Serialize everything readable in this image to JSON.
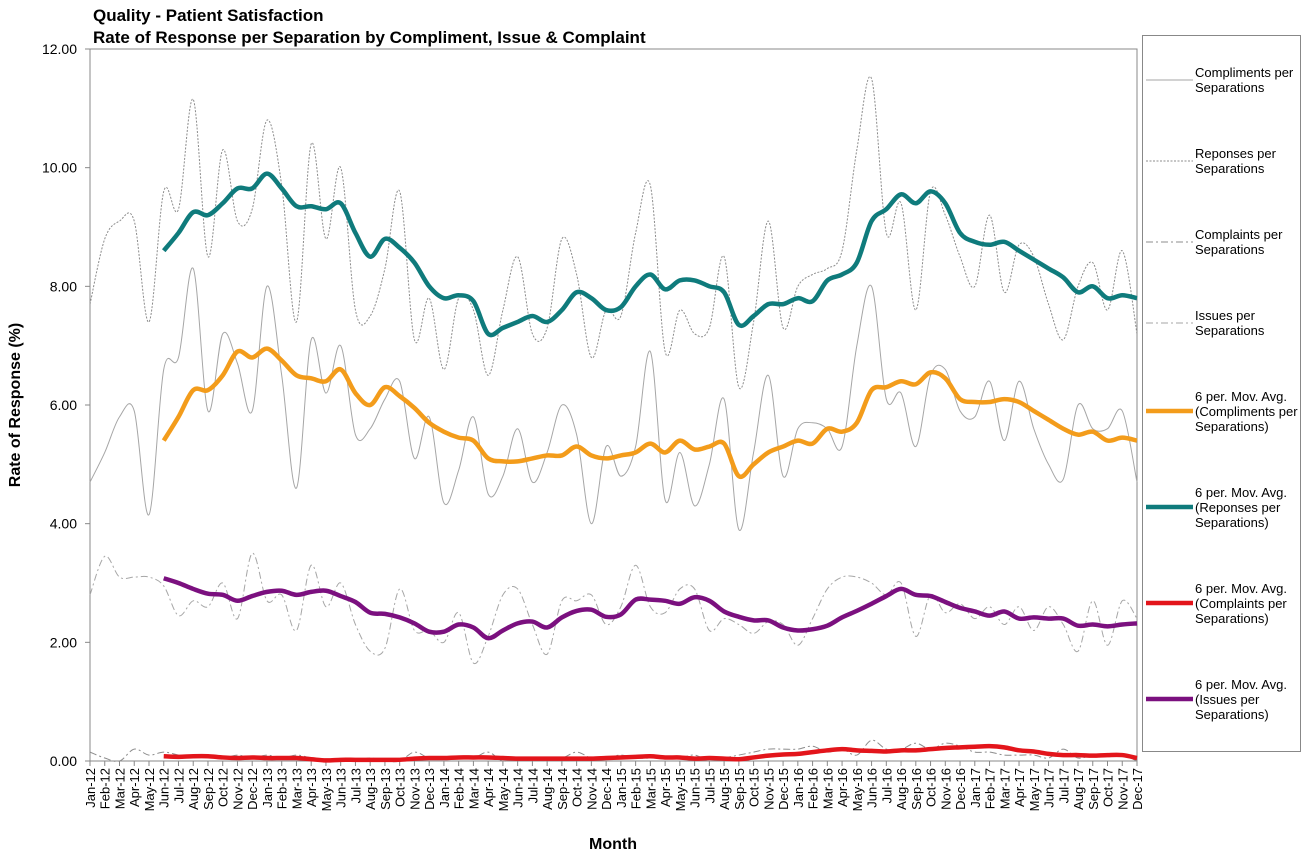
{
  "chart_data": {
    "type": "line",
    "title": "Quality - Patient Satisfaction",
    "subtitle": "Rate of Response per Separation by Compliment, Issue & Complaint",
    "x_label": "Month",
    "y_label": "Rate of  Response (%)",
    "categories": [
      "Jan-12",
      "Feb-12",
      "Mar-12",
      "Apr-12",
      "May-12",
      "Jun-12",
      "Jul-12",
      "Aug-12",
      "Sep-12",
      "Oct-12",
      "Nov-12",
      "Dec-12",
      "Jan-13",
      "Feb-13",
      "Mar-13",
      "Apr-13",
      "May-13",
      "Jun-13",
      "Jul-13",
      "Aug-13",
      "Sep-13",
      "Oct-13",
      "Nov-13",
      "Dec-13",
      "Jan-14",
      "Feb-14",
      "Mar-14",
      "Apr-14",
      "May-14",
      "Jun-14",
      "Jul-14",
      "Aug-14",
      "Sep-14",
      "Oct-14",
      "Nov-14",
      "Dec-14",
      "Jan-15",
      "Feb-15",
      "Mar-15",
      "Apr-15",
      "May-15",
      "Jun-15",
      "Jul-15",
      "Aug-15",
      "Sep-15",
      "Oct-15",
      "Nov-15",
      "Dec-15",
      "Jan-16",
      "Feb-16",
      "Mar-16",
      "Apr-16",
      "May-16",
      "Jun-16",
      "Jul-16",
      "Aug-16",
      "Sep-16",
      "Oct-16",
      "Nov-16",
      "Dec-16",
      "Jan-17",
      "Feb-17",
      "Mar-17",
      "Apr-17",
      "May-17",
      "Jun-17",
      "Jul-17",
      "Aug-17",
      "Sep-17",
      "Oct-17",
      "Nov-17",
      "Dec-17"
    ],
    "ylim": [
      0,
      12
    ],
    "yticks": [
      {
        "value": 0,
        "label": "0.00"
      },
      {
        "value": 2,
        "label": "2.00"
      },
      {
        "value": 4,
        "label": "4.00"
      },
      {
        "value": 6,
        "label": "6.00"
      },
      {
        "value": 8,
        "label": "8.00"
      },
      {
        "value": 10,
        "label": "10.00"
      },
      {
        "value": 12,
        "label": "12.00"
      }
    ],
    "legend": "right",
    "series": [
      {
        "name": "Compliments per Separations",
        "color": "#a6a6a6",
        "line_style": "solid",
        "values": [
          4.7,
          5.2,
          5.8,
          5.9,
          4.15,
          6.6,
          6.8,
          8.3,
          5.9,
          7.2,
          6.7,
          5.9,
          8.0,
          6.5,
          4.6,
          7.1,
          6.2,
          7.0,
          5.5,
          5.6,
          6.1,
          6.4,
          5.1,
          5.8,
          4.35,
          4.9,
          5.8,
          4.5,
          4.8,
          5.6,
          4.7,
          5.2,
          6.0,
          5.5,
          4.0,
          5.3,
          4.8,
          5.3,
          6.9,
          4.4,
          5.2,
          4.3,
          5.0,
          6.1,
          3.9,
          5.2,
          6.5,
          4.8,
          5.6,
          5.7,
          5.6,
          5.3,
          7.0,
          8.0,
          6.1,
          6.2,
          5.3,
          6.5,
          6.6,
          5.9,
          5.8,
          6.4,
          5.4,
          6.4,
          5.6,
          5.0,
          4.75,
          6.0,
          5.6,
          5.6,
          5.9,
          4.7
        ]
      },
      {
        "name": "Reponses per Separations",
        "color": "#8c8c8c",
        "line_style": "dotted",
        "values": [
          7.7,
          8.8,
          9.1,
          9.1,
          7.4,
          9.6,
          9.3,
          11.15,
          8.5,
          10.3,
          9.1,
          9.3,
          10.8,
          9.7,
          7.4,
          10.4,
          8.8,
          10.0,
          7.6,
          7.5,
          8.3,
          9.6,
          7.1,
          7.8,
          6.6,
          7.8,
          7.6,
          6.5,
          7.6,
          8.5,
          7.2,
          7.3,
          8.8,
          8.2,
          6.8,
          7.6,
          7.5,
          8.9,
          9.7,
          6.9,
          7.6,
          7.2,
          7.3,
          8.5,
          6.3,
          7.4,
          9.1,
          7.3,
          8.0,
          8.2,
          8.3,
          8.6,
          10.3,
          11.5,
          8.9,
          9.4,
          7.6,
          9.6,
          9.2,
          8.5,
          8.0,
          9.2,
          7.9,
          8.7,
          8.5,
          7.7,
          7.1,
          8.0,
          8.4,
          7.6,
          8.6,
          7.2
        ]
      },
      {
        "name": "Complaints per Separations",
        "color": "#8c8c8c",
        "line_style": "dash-dot",
        "values": [
          0.15,
          0.05,
          0.0,
          0.2,
          0.1,
          0.15,
          0.1,
          0.05,
          0.1,
          0.05,
          0.1,
          0.05,
          0.1,
          0.05,
          0.1,
          0.05,
          0.0,
          0.0,
          0.0,
          0.05,
          0.0,
          0.0,
          0.15,
          0.05,
          0.05,
          0.05,
          0.05,
          0.15,
          0.0,
          0.05,
          0.05,
          0.05,
          0.05,
          0.15,
          0.05,
          0.05,
          0.1,
          0.05,
          0.05,
          0.05,
          0.05,
          0.1,
          0.0,
          0.05,
          0.1,
          0.15,
          0.2,
          0.2,
          0.2,
          0.25,
          0.15,
          0.2,
          0.1,
          0.35,
          0.2,
          0.2,
          0.3,
          0.2,
          0.3,
          0.25,
          0.15,
          0.15,
          0.1,
          0.1,
          0.1,
          0.05,
          0.2,
          0.05,
          0.1,
          0.1,
          0.1,
          0.0
        ]
      },
      {
        "name": "Issues per Separations",
        "color": "#a6a6a6",
        "line_style": "dash-dot",
        "values": [
          2.8,
          3.45,
          3.1,
          3.1,
          3.1,
          2.95,
          2.45,
          2.7,
          2.6,
          3.0,
          2.4,
          3.5,
          2.7,
          2.8,
          2.2,
          3.3,
          2.6,
          3.0,
          2.3,
          1.85,
          1.9,
          2.9,
          2.2,
          2.2,
          2.0,
          2.5,
          1.65,
          2.1,
          2.8,
          2.9,
          2.3,
          1.8,
          2.7,
          2.7,
          2.8,
          2.3,
          2.6,
          3.3,
          2.6,
          2.5,
          2.9,
          2.9,
          2.2,
          2.4,
          2.3,
          2.15,
          2.35,
          2.3,
          1.95,
          2.4,
          2.9,
          3.1,
          3.1,
          3.0,
          2.8,
          3.0,
          2.1,
          2.8,
          2.5,
          2.65,
          2.4,
          2.6,
          2.3,
          2.6,
          2.2,
          2.6,
          2.3,
          1.85,
          2.7,
          1.95,
          2.7,
          2.4
        ]
      },
      {
        "name": "6 per. Mov. Avg. (Compliments per Separations)",
        "color": "#f39c1b",
        "line_style": "thick",
        "values": [
          null,
          null,
          null,
          null,
          null,
          5.4,
          5.8,
          6.25,
          6.25,
          6.5,
          6.9,
          6.8,
          6.95,
          6.75,
          6.5,
          6.45,
          6.4,
          6.6,
          6.2,
          6.0,
          6.3,
          6.15,
          5.95,
          5.7,
          5.55,
          5.45,
          5.4,
          5.1,
          5.05,
          5.05,
          5.1,
          5.15,
          5.15,
          5.3,
          5.15,
          5.1,
          5.15,
          5.2,
          5.35,
          5.2,
          5.4,
          5.25,
          5.3,
          5.35,
          4.8,
          5.0,
          5.2,
          5.3,
          5.4,
          5.35,
          5.6,
          5.55,
          5.7,
          6.25,
          6.3,
          6.4,
          6.35,
          6.55,
          6.45,
          6.1,
          6.05,
          6.05,
          6.1,
          6.05,
          5.9,
          5.75,
          5.6,
          5.5,
          5.55,
          5.4,
          5.45,
          5.4
        ]
      },
      {
        "name": "6 per. Mov. Avg. (Reponses per Separations)",
        "color": "#0f7b7c",
        "line_style": "thick",
        "values": [
          null,
          null,
          null,
          null,
          null,
          8.6,
          8.9,
          9.25,
          9.2,
          9.4,
          9.65,
          9.65,
          9.9,
          9.65,
          9.35,
          9.35,
          9.3,
          9.4,
          8.9,
          8.5,
          8.8,
          8.65,
          8.4,
          8.0,
          7.8,
          7.85,
          7.75,
          7.2,
          7.3,
          7.4,
          7.5,
          7.4,
          7.6,
          7.9,
          7.8,
          7.6,
          7.65,
          8.0,
          8.2,
          7.95,
          8.1,
          8.1,
          8.0,
          7.9,
          7.35,
          7.5,
          7.7,
          7.7,
          7.8,
          7.75,
          8.1,
          8.2,
          8.4,
          9.1,
          9.3,
          9.55,
          9.4,
          9.6,
          9.4,
          8.9,
          8.75,
          8.7,
          8.75,
          8.6,
          8.45,
          8.3,
          8.15,
          7.9,
          8.0,
          7.8,
          7.85,
          7.8
        ]
      },
      {
        "name": "6 per. Mov. Avg. (Complaints per Separations)",
        "color": "#e3151b",
        "line_style": "thick",
        "values": [
          null,
          null,
          null,
          null,
          null,
          0.08,
          0.07,
          0.08,
          0.08,
          0.06,
          0.05,
          0.06,
          0.05,
          0.05,
          0.05,
          0.03,
          0.01,
          0.02,
          0.02,
          0.02,
          0.02,
          0.02,
          0.04,
          0.05,
          0.05,
          0.06,
          0.06,
          0.06,
          0.05,
          0.04,
          0.04,
          0.04,
          0.04,
          0.04,
          0.04,
          0.05,
          0.06,
          0.07,
          0.08,
          0.06,
          0.06,
          0.04,
          0.05,
          0.04,
          0.03,
          0.06,
          0.09,
          0.11,
          0.12,
          0.15,
          0.18,
          0.2,
          0.18,
          0.17,
          0.16,
          0.18,
          0.18,
          0.2,
          0.22,
          0.23,
          0.24,
          0.25,
          0.23,
          0.18,
          0.16,
          0.12,
          0.1,
          0.1,
          0.09,
          0.1,
          0.1,
          0.05
        ]
      },
      {
        "name": "6 per. Mov. Avg. (Issues per Separations)",
        "color": "#7b107f",
        "line_style": "thick",
        "values": [
          null,
          null,
          null,
          null,
          null,
          3.08,
          3.0,
          2.9,
          2.82,
          2.8,
          2.7,
          2.78,
          2.85,
          2.87,
          2.8,
          2.85,
          2.87,
          2.78,
          2.68,
          2.5,
          2.48,
          2.42,
          2.32,
          2.18,
          2.18,
          2.3,
          2.25,
          2.07,
          2.2,
          2.32,
          2.35,
          2.25,
          2.42,
          2.53,
          2.55,
          2.43,
          2.47,
          2.72,
          2.72,
          2.7,
          2.65,
          2.76,
          2.7,
          2.52,
          2.43,
          2.37,
          2.37,
          2.25,
          2.2,
          2.22,
          2.28,
          2.42,
          2.53,
          2.65,
          2.78,
          2.9,
          2.8,
          2.78,
          2.68,
          2.58,
          2.52,
          2.45,
          2.52,
          2.4,
          2.42,
          2.4,
          2.4,
          2.28,
          2.3,
          2.27,
          2.3,
          2.32
        ]
      }
    ]
  }
}
